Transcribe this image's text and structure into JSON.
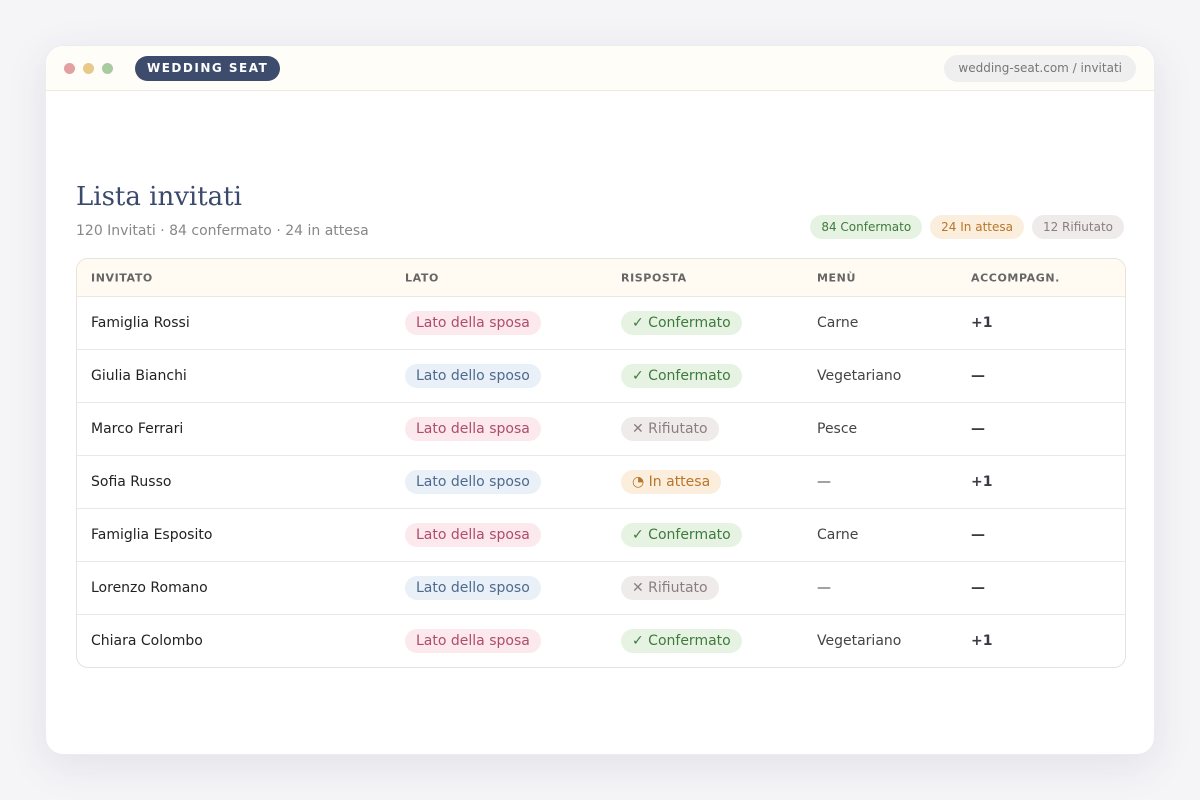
{
  "header": {
    "brand": "WEDDING SEAT",
    "url": "wedding-seat.com / invitati"
  },
  "page": {
    "title": "Lista invitati",
    "subtitle": "120 Invitati · 84 confermato · 24 in attesa",
    "summary": [
      "84 Confermato",
      "24 In attesa",
      "12 Rifiutato"
    ]
  },
  "table": {
    "columns": [
      "INVITATO",
      "LATO",
      "RISPOSTA",
      "MENÙ",
      "ACCOMPAGN."
    ],
    "rows": [
      [
        "Famiglia Rossi",
        "Lato della sposa",
        "✓ Confermato",
        "Carne",
        "+1"
      ],
      [
        "Giulia Bianchi",
        "Lato dello sposo",
        "✓ Confermato",
        "Vegetariano",
        "—"
      ],
      [
        "Marco Ferrari",
        "Lato della sposa",
        "✕ Rifiutato",
        "Pesce",
        "—"
      ],
      [
        "Sofia Russo",
        "Lato dello sposo",
        "◔ In attesa",
        "—",
        "+1"
      ],
      [
        "Famiglia Esposito",
        "Lato della sposa",
        "✓ Confermato",
        "Carne",
        "—"
      ],
      [
        "Lorenzo Romano",
        "Lato dello sposo",
        "✕ Rifiutato",
        "—",
        "—"
      ],
      [
        "Chiara Colombo",
        "Lato della sposa",
        "✓ Confermato",
        "Vegetariano",
        "+1"
      ]
    ]
  }
}
